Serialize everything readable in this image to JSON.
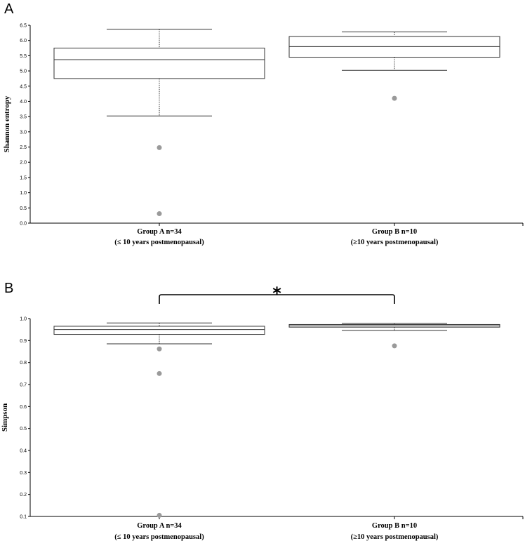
{
  "chart_data": [
    {
      "type": "box",
      "panel": "A",
      "ylabel": "Shannon entropy",
      "ylim": [
        0.0,
        6.5
      ],
      "yticks": [
        "0.0",
        "0.5",
        "1.0",
        "1.5",
        "2.0",
        "2.5",
        "3.0",
        "3.5",
        "4.0",
        "4.5",
        "5.0",
        "5.5",
        "6.0",
        "6.5"
      ],
      "categories": [
        {
          "line1": "Group A n=34",
          "line2": "(≤ 10 years postmenopausal)"
        },
        {
          "line1": "Group B n=10",
          "line2": "(≥10 years postmenopausal)"
        }
      ],
      "boxes": [
        {
          "min": 3.52,
          "q1": 4.75,
          "median": 5.37,
          "q3": 5.75,
          "max": 6.37,
          "outliers": [
            2.48,
            0.31
          ]
        },
        {
          "min": 5.02,
          "q1": 5.45,
          "median": 5.8,
          "q3": 6.13,
          "max": 6.28,
          "outliers": [
            4.1
          ]
        }
      ]
    },
    {
      "type": "box",
      "panel": "B",
      "ylabel": "Simpson",
      "ylim": [
        0.1,
        1.0
      ],
      "yticks": [
        "0.1",
        "0.2",
        "0.3",
        "0.4",
        "0.5",
        "0.6",
        "0.7",
        "0.8",
        "0.9",
        "1.0"
      ],
      "categories": [
        {
          "line1": "Group A n=34",
          "line2": "(≤ 10 years postmenopausal)"
        },
        {
          "line1": "Group B n=10",
          "line2": "(≥10 years postmenopausal)"
        }
      ],
      "boxes": [
        {
          "min": 0.885,
          "q1": 0.928,
          "median": 0.95,
          "q3": 0.965,
          "max": 0.98,
          "outliers": [
            0.862,
            0.75,
            0.105
          ]
        },
        {
          "min": 0.946,
          "q1": 0.961,
          "median": 0.967,
          "q3": 0.973,
          "max": 0.978,
          "outliers": [
            0.876
          ]
        }
      ],
      "significance": {
        "between": [
          0,
          1
        ],
        "marker": "*"
      }
    }
  ]
}
